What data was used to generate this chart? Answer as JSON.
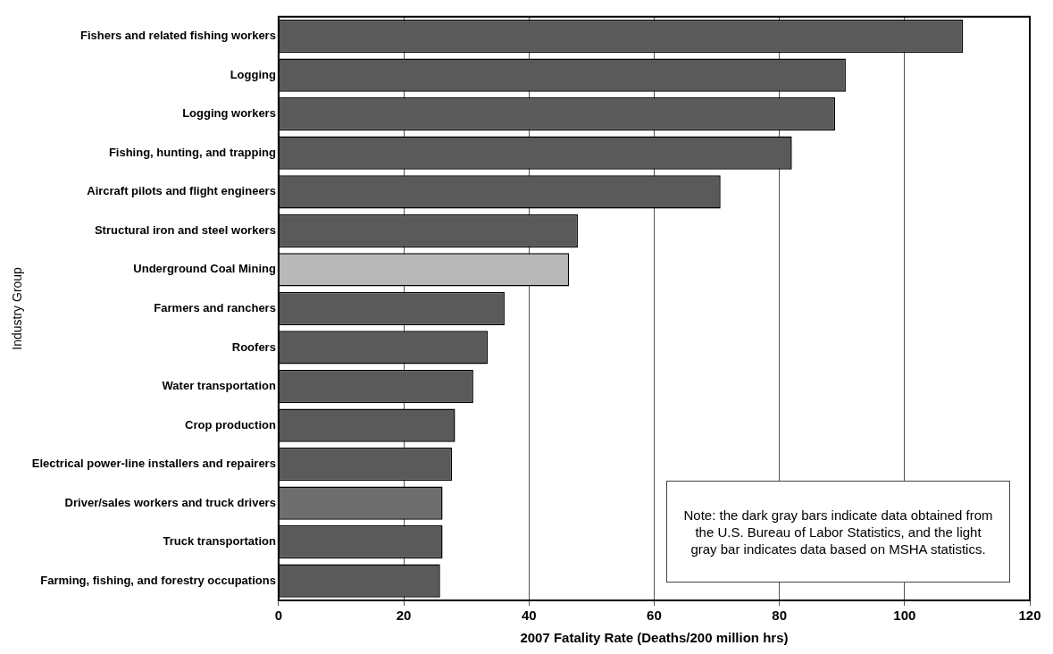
{
  "chart_data": {
    "type": "bar",
    "orientation": "horizontal",
    "xlabel": "2007 Fatality Rate (Deaths/200 million hrs)",
    "ylabel": "Industry Group",
    "categories": [
      "Fishers and related fishing workers",
      "Logging",
      "Logging workers",
      "Fishing, hunting, and trapping",
      "Aircraft pilots and flight engineers",
      "Structural iron and steel workers",
      "Underground Coal Mining",
      "Farmers and ranchers",
      "Roofers",
      "Water transportation",
      "Crop production",
      "Electrical power-line installers and repairers",
      "Driver/sales workers and truck drivers",
      "Truck transportation",
      "Farming, fishing, and forestry occupations"
    ],
    "values": [
      109.3,
      90.6,
      88.9,
      82.0,
      70.6,
      47.8,
      46.4,
      36.1,
      33.4,
      31.1,
      28.2,
      27.7,
      26.2,
      26.2,
      25.8
    ],
    "colors": [
      "#5a5a5a",
      "#5a5a5a",
      "#5a5a5a",
      "#5a5a5a",
      "#5a5a5a",
      "#5a5a5a",
      "#b8b8b8",
      "#5a5a5a",
      "#5a5a5a",
      "#5a5a5a",
      "#5a5a5a",
      "#5a5a5a",
      "#6e6e6e",
      "#5a5a5a",
      "#5a5a5a"
    ],
    "xlim": [
      0,
      120
    ],
    "xticks": [
      0,
      20,
      40,
      60,
      80,
      100,
      120
    ],
    "grid": "x",
    "legend": false,
    "annotations": [
      "Note: the dark gray bars indicate data obtained from the U.S. Bureau of Labor Statistics, and the light gray bar indicates data based on MSHA statistics."
    ]
  }
}
